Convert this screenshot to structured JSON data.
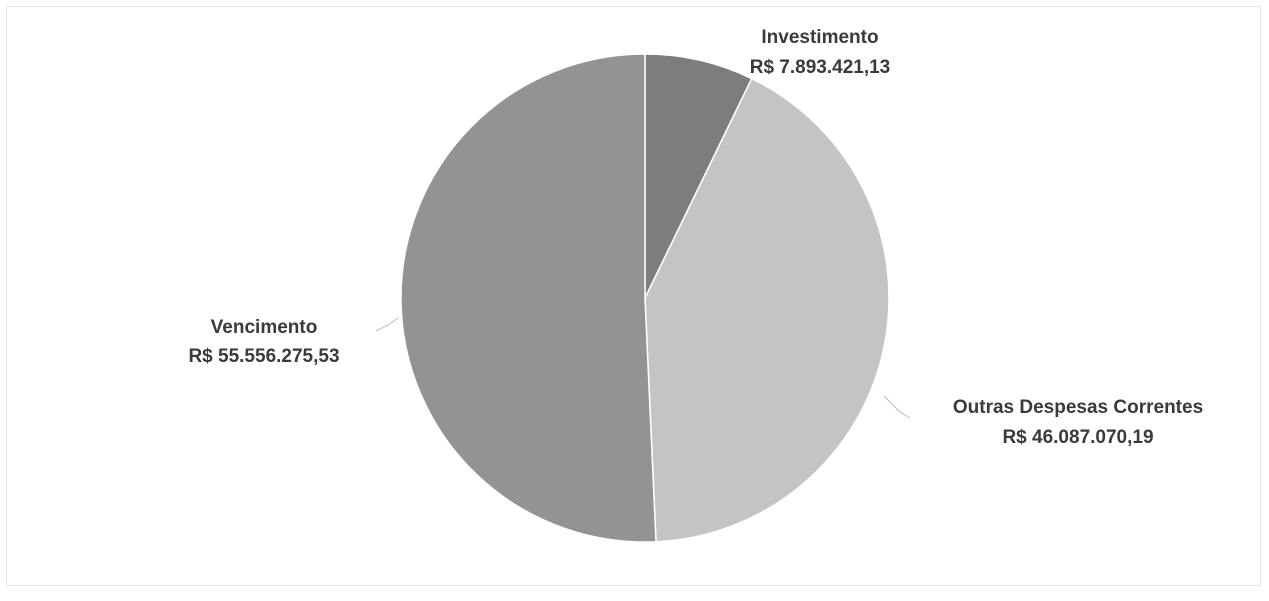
{
  "chart_data": {
    "type": "pie",
    "title": "",
    "start_angle_deg": 0,
    "direction": "clockwise",
    "slices": [
      {
        "name": "Investimento",
        "value_label": "R$ 7.893.421,13",
        "value": 7893421.13,
        "color": "#7d7d7d"
      },
      {
        "name": "Outras Despesas Correntes",
        "value_label": "R$ 46.087.070,19",
        "value": 46087070.19,
        "color": "#c4c4c4"
      },
      {
        "name": "Vencimento",
        "value_label": "R$ 55.556.275,53",
        "value": 55556275.53,
        "color": "#939393"
      }
    ],
    "slice_border_color": "#ffffff",
    "label_color": "#3a3a3a",
    "leader_color": "#b8b8b8"
  }
}
